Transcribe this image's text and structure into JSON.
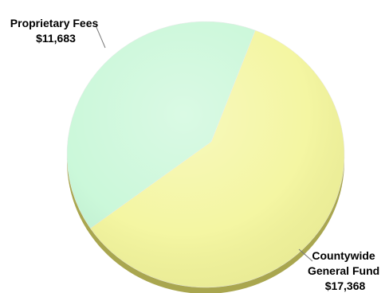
{
  "chart_data": {
    "type": "pie",
    "title": "",
    "slices": [
      {
        "label_lines": [
          "Proprietary Fees",
          "$11,683"
        ],
        "value": 11683,
        "color": "#c6f7d6"
      },
      {
        "label_lines": [
          "Countywide",
          "General Fund",
          "$17,368"
        ],
        "value": 17368,
        "color": "#f3f59a"
      }
    ],
    "style": {
      "three_d": true,
      "side_color": "#a9a64f",
      "label_leader_lines": true
    }
  }
}
